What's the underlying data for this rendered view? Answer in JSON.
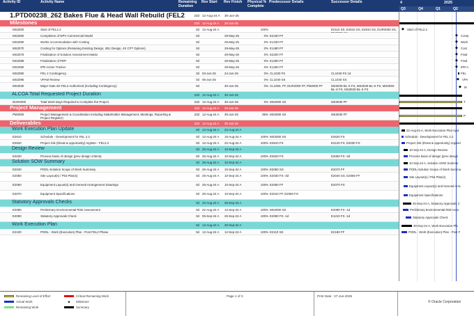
{
  "header": {
    "activity_id": "Activity ID",
    "activity_name": "Activity Name",
    "remaining_duration": "Remaining Duration",
    "rev_start": "Rev Start",
    "rev_finish": "Rev Finish",
    "physical_pct": "Physical % Complete",
    "predecessor": "Predecessor Details",
    "successor": "Successor Details",
    "gantt_year_1": "4",
    "gantt_year_2": "2025",
    "quarters": [
      "Q3",
      "Q4",
      "Q1",
      "Q2"
    ]
  },
  "project": {
    "name": "1.PTD00238_262 Bakes Flue & Head Wall Rebuild (FEL2",
    "rem": "23d",
    "start": "12-Aug-24 A",
    "finish": "30-Jun-25"
  },
  "rows": [
    {
      "kind": "crit",
      "name": "Milestones",
      "rem": "23d",
      "start": "12-Aug-24 A",
      "finish": "30-Jun-25"
    },
    {
      "kind": "act",
      "id": "MS2000",
      "name": "Start of FEL2.2",
      "rem": "0d",
      "start": "12-Aug-24 A",
      "finish": "",
      "pc": "100%",
      "pred": "",
      "succ": "E2110 SS, E2610 SS, E2810 SS, DUR2000 SS, PM2000 SS"
    },
    {
      "kind": "act",
      "id": "MS2060",
      "name": "Completion of NPV Commercial Model",
      "rem": "0d",
      "start": "",
      "finish": "29-May-25",
      "pc": "0%",
      "pred": "E2150 FF",
      "succ": ""
    },
    {
      "kind": "act",
      "id": "MS2080",
      "name": "Works Accommodation with Costing",
      "rem": "0d",
      "start": "",
      "finish": "29-May-25",
      "pc": "0%",
      "pred": "E1430 FF",
      "succ": ""
    },
    {
      "kind": "act",
      "id": "MS2070",
      "name": "Costing for Options (Retaining Existing Design, 2B1 Design, 4X CFT Options)",
      "rem": "0d",
      "start": "",
      "finish": "29-May-25",
      "pc": "0%",
      "pred": "E1480 FF",
      "succ": ""
    },
    {
      "kind": "act",
      "id": "MS2075",
      "name": "Finalization of Solution Assessment Matrix",
      "rem": "0d",
      "start": "",
      "finish": "29-May-25",
      "pc": "0%",
      "pred": "E2200 FF",
      "succ": ""
    },
    {
      "kind": "act",
      "id": "MS2085",
      "name": "Finalization of PEP",
      "rem": "0d",
      "start": "",
      "finish": "29-May-25",
      "pc": "0%",
      "pred": "E1290 FF",
      "succ": ""
    },
    {
      "kind": "act",
      "id": "MS2080",
      "name": "IPR Action Tracker",
      "rem": "0d",
      "start": "",
      "finish": "29-May-25",
      "pc": "0%",
      "pred": "E1250 FF",
      "succ": ""
    },
    {
      "kind": "act",
      "id": "MS2090",
      "name": "FEL 2 Contingency",
      "rem": "3d",
      "start": "03-Jun-25",
      "finish": "24-Jun-25",
      "pc": "0%",
      "pred": "CL1030 FS",
      "succ": "CL1040 FS 1d"
    },
    {
      "kind": "act",
      "id": "MS2095",
      "name": "VPAM Review",
      "rem": "0d",
      "start": "06-Jun-25",
      "finish": "",
      "pc": "0%",
      "pred": "CL1040 SS",
      "succ": "CL1040 SS"
    },
    {
      "kind": "act2",
      "id": "MS3030",
      "name": "Major Gate 2D FEL2 Authorized (Including Contingency)",
      "rem": "0d",
      "start": "",
      "finish": "30-Jun-25",
      "pc": "0%",
      "pred": "CL1050, FF, DUR2000 FF, PM2000 FF",
      "succ": "MS3030-BL-S FS, MS3030-BL-S FS, MS3030-BL-S FS, MS3030-BL-S FS"
    },
    {
      "kind": "wbs",
      "name": "ALCOA Total Requested Project Duration",
      "rem": "23d",
      "start": "12-Aug-24 A",
      "finish": "30-Jun-25"
    },
    {
      "kind": "act",
      "id": "DUR2000",
      "name": "Total Work Days Required to Complete the Project",
      "rem": "23d",
      "start": "12-Aug-24 A",
      "finish": "30-Jun-25",
      "pc": "0%",
      "pred": "MS2000 SS",
      "succ": "MS3030 FF"
    },
    {
      "kind": "crit",
      "name": "Project Management",
      "rem": "23d",
      "start": "12-Aug-24 A",
      "finish": "30-Jun-25"
    },
    {
      "kind": "act2",
      "id": "PM2000",
      "name": "Project Management & Coordination Including Stakeholder Management, Meetings, Reporting & Project Register)",
      "rem": "23d",
      "start": "12-Aug-24 A",
      "finish": "30-Jun-25",
      "pc": "95%",
      "pred": "MS2000 SS",
      "succ": "MS3030 FF"
    },
    {
      "kind": "crit",
      "name": "Deliverables",
      "rem": "23d",
      "start": "12-Aug-24 A",
      "finish": "30-Jun-25"
    },
    {
      "kind": "wbs",
      "name": "Work Execution Plan Update",
      "rem": "0d",
      "start": "12-Aug-24 A",
      "finish": "22-Aug-24 A"
    },
    {
      "kind": "act",
      "id": "E2610",
      "name": "Schedule - Development for FEL 2.2",
      "rem": "0d",
      "start": "12-Aug-24 A",
      "finish": "16-Aug-24 A",
      "pc": "100%",
      "pred": "MS2000 SS",
      "succ": "E2620 FS"
    },
    {
      "kind": "act",
      "id": "E2620",
      "name": "Project risk (threat & opportunity) register - FEL2.2",
      "rem": "0d",
      "start": "12-Aug-24 A",
      "finish": "22-Aug-24 A",
      "pc": "100%",
      "pred": "E2610 FS",
      "succ": "E2120 FS, E2030 FS"
    },
    {
      "kind": "wbs",
      "name": "Design Review",
      "rem": "0d",
      "start": "26-Aug-24 A",
      "finish": "10-Sep-24 A"
    },
    {
      "kind": "act",
      "id": "E2030",
      "name": "Process basis of design (prev design criteria)",
      "rem": "0d",
      "start": "26-Aug-24 A",
      "finish": "10-Sep-24 A",
      "pc": "100%",
      "pred": "E2620 FS",
      "succ": "E2050 FS -3d"
    },
    {
      "kind": "wbs",
      "name": "Solution SOW Summary",
      "rem": "0d",
      "start": "26-Aug-24 A",
      "finish": "10-Sep-24 A"
    },
    {
      "kind": "act",
      "id": "E2040",
      "name": "PODL-Solution Scope of Work Summary",
      "rem": "0d",
      "start": "26-Aug-24 A",
      "finish": "10-Sep-24 A",
      "pc": "100%",
      "pred": "E2050 SS",
      "succ": "E2070 FF"
    },
    {
      "kind": "act2",
      "id": "E2050",
      "name": "Site Layout(s) / Plot Plan(s)",
      "rem": "0d",
      "start": "26-Aug-24 A",
      "finish": "10-Sep-24 A",
      "pc": "100%",
      "pred": "E2030 FS -3d",
      "succ": "E2040 SS, E2060 FF"
    },
    {
      "kind": "act2",
      "id": "E2060",
      "name": "Equipment Layout(s) and General Arrangement Drawings",
      "rem": "0d",
      "start": "26-Aug-24 A",
      "finish": "10-Sep-24 A",
      "pc": "100%",
      "pred": "E2050 FF",
      "succ": "E2070 FS"
    },
    {
      "kind": "act2",
      "id": "E2070",
      "name": "Equipment Specifications",
      "rem": "0d",
      "start": "26-Aug-24 A",
      "finish": "10-Sep-24 A",
      "pc": "100%",
      "pred": "E2042 FF, E2060 FS",
      "succ": ""
    },
    {
      "kind": "wbs",
      "name": "Statutory Approvals Checks",
      "rem": "0d",
      "start": "22-Aug-24 A",
      "finish": "26-Sep-24 A"
    },
    {
      "kind": "act",
      "id": "E2080",
      "name": "Preliminary Environmental Risk Assessment",
      "rem": "0d",
      "start": "22-Aug-24 A",
      "finish": "12-Sep-24 A",
      "pc": "100%",
      "pred": "MS2000 SS",
      "succ": "E2090 FS -1d"
    },
    {
      "kind": "act2",
      "id": "E2090",
      "name": "Statutory Approvals Check",
      "rem": "0d",
      "start": "05-Sep-24 A",
      "finish": "26-Sep-24 A",
      "pc": "100%",
      "pred": "E2080 FS -1d",
      "succ": "E1210 FS -1d"
    },
    {
      "kind": "wbs",
      "name": "Work Execution Plan",
      "rem": "0d",
      "start": "12-Aug-24 A",
      "finish": "30-Sep-24 A"
    },
    {
      "kind": "act",
      "id": "E2100",
      "name": "PODL - Work (Execution) Plan - Post FEL2 Phase",
      "rem": "0d",
      "start": "12-Aug-24 A",
      "finish": "12-Sep-24 A",
      "pc": "100%",
      "pred": "E2110 SS",
      "succ": "E2180 FF"
    }
  ],
  "gantt_labels": [
    {
      "text": "Start of FEL2.2"
    },
    {
      "text": "Comp"
    },
    {
      "text": "Work"
    },
    {
      "text": "Cost"
    },
    {
      "text": "Final"
    },
    {
      "text": "Final"
    },
    {
      "text": "IPR A"
    },
    {
      "text": "FEL"
    },
    {
      "text": "VPA"
    },
    {
      "text": "M"
    },
    {
      "text": "T"
    },
    {
      "text": "P"
    },
    {
      "text": "22-Aug-24 A, Work Execution Plan Upd"
    },
    {
      "text": "Schedule - Development for FEL 2.2"
    },
    {
      "text": "Project risk (threat & opportunity) register"
    },
    {
      "text": "10-Sep-24 A, Design Review"
    },
    {
      "text": "Process basis of design (prev design"
    },
    {
      "text": "10-Sep-24 A, Solution SOW Summar"
    },
    {
      "text": "PODL-Solution Scope of Work Summa"
    },
    {
      "text": "Site Layout(s) / Plot Plan(s)"
    },
    {
      "text": "Equipment Layout(s) and General Arra"
    },
    {
      "text": "Equipment Specifications"
    },
    {
      "text": "26-Sep-24 A, Statutory Approvals C"
    },
    {
      "text": "Preliminary Environmental Risk Asse"
    },
    {
      "text": "Statutory Approvals Check"
    },
    {
      "text": "30-Sep-24 A, Work Execution Pla"
    },
    {
      "text": "PODL - Work (Execution) Plan - Post F"
    }
  ],
  "footer": {
    "legend_1": "Remaining Level of Effort",
    "legend_2": "Actual Work",
    "legend_3": "Remaining Work",
    "legend_4": "Critical Remaining Work",
    "legend_5": "Milestone",
    "legend_6": "Summary",
    "page": "Page 1 of 3",
    "print_date": "Print Date : 27-Jun-2025",
    "corp": "© Oracle Corporation"
  },
  "colors": {
    "header_bg": "#1c3a73",
    "critical_band": "#f0636c",
    "wbs_band": "#78d8d6",
    "actual_work": "#1b2fc6",
    "remaining_loe": "#f2ea1c",
    "remaining_work": "#7ee07e",
    "critical_remaining": "#e01010"
  }
}
